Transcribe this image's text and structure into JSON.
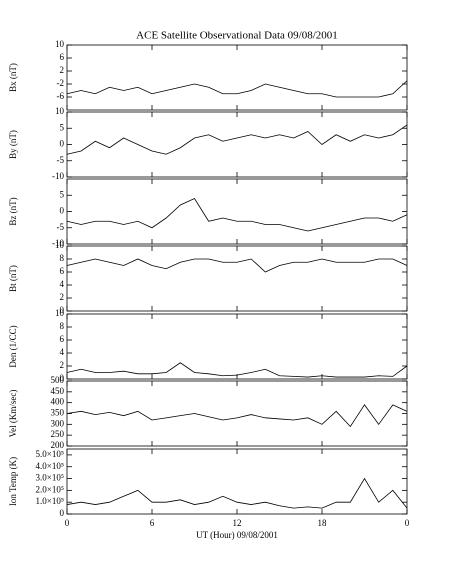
{
  "chart_data": [
    {
      "type": "line",
      "title": "ACE Satellite Observational Data  09/08/2001",
      "ylabel": "Bx (nT)",
      "xlim": [
        0,
        24
      ],
      "xticks": [
        {
          "value": 0,
          "label": "0"
        },
        6,
        12,
        18,
        {
          "value": 24,
          "label": "0"
        }
      ],
      "ylim": [
        -10,
        10
      ],
      "yticks": [
        -6,
        -2,
        2,
        6,
        10
      ],
      "x": [
        0,
        1,
        2,
        3,
        4,
        5,
        6,
        7,
        8,
        9,
        10,
        11,
        12,
        13,
        14,
        15,
        16,
        17,
        18,
        19,
        20,
        21,
        22,
        23,
        24
      ],
      "series": [
        {
          "color": "#000000",
          "values": [
            -5,
            -4,
            -5,
            -3,
            -4,
            -3,
            -5,
            -4,
            -3,
            -2,
            -3,
            -5,
            -5,
            -4,
            -2,
            -3,
            -4,
            -5,
            -5,
            -6,
            -6,
            -6,
            -6,
            -5,
            -1
          ]
        }
      ]
    },
    {
      "type": "line",
      "ylabel": "By (nT)",
      "xlim": [
        0,
        24
      ],
      "xticks": [
        {
          "value": 0,
          "label": "0"
        },
        6,
        12,
        18,
        {
          "value": 24,
          "label": "0"
        }
      ],
      "ylim": [
        -10,
        10
      ],
      "yticks": [
        -10,
        -5,
        0,
        5,
        10
      ],
      "x": [
        0,
        1,
        2,
        3,
        4,
        5,
        6,
        7,
        8,
        9,
        10,
        11,
        12,
        13,
        14,
        15,
        16,
        17,
        18,
        19,
        20,
        21,
        22,
        23,
        24
      ],
      "series": [
        {
          "color": "#000000",
          "values": [
            -3,
            -2,
            1,
            -1,
            2,
            0,
            -2,
            -3,
            -1,
            2,
            3,
            1,
            2,
            3,
            2,
            3,
            2,
            4,
            0,
            3,
            1,
            3,
            2,
            3,
            6
          ]
        }
      ]
    },
    {
      "type": "line",
      "ylabel": "Bz (nT)",
      "xlim": [
        0,
        24
      ],
      "xticks": [
        {
          "value": 0,
          "label": "0"
        },
        6,
        12,
        18,
        {
          "value": 24,
          "label": "0"
        }
      ],
      "ylim": [
        -10,
        10
      ],
      "yticks": [
        -10,
        -5,
        0,
        5
      ],
      "x": [
        0,
        1,
        2,
        3,
        4,
        5,
        6,
        7,
        8,
        9,
        10,
        11,
        12,
        13,
        14,
        15,
        16,
        17,
        18,
        19,
        20,
        21,
        22,
        23,
        24
      ],
      "series": [
        {
          "color": "#000000",
          "values": [
            -3,
            -4,
            -3,
            -3,
            -4,
            -3,
            -5,
            -2,
            2,
            4,
            -3,
            -2,
            -3,
            -3,
            -4,
            -4,
            -5,
            -6,
            -5,
            -4,
            -3,
            -2,
            -2,
            -3,
            -1
          ]
        }
      ]
    },
    {
      "type": "line",
      "ylabel": "Bt (nT)",
      "xlim": [
        0,
        24
      ],
      "xticks": [
        {
          "value": 0,
          "label": "0"
        },
        6,
        12,
        18,
        {
          "value": 24,
          "label": "0"
        }
      ],
      "ylim": [
        0,
        10
      ],
      "yticks": [
        0,
        2,
        4,
        6,
        8,
        10
      ],
      "x": [
        0,
        1,
        2,
        3,
        4,
        5,
        6,
        7,
        8,
        9,
        10,
        11,
        12,
        13,
        14,
        15,
        16,
        17,
        18,
        19,
        20,
        21,
        22,
        23,
        24
      ],
      "series": [
        {
          "color": "#000000",
          "values": [
            7,
            7.5,
            8,
            7.5,
            7,
            8,
            7,
            6.5,
            7.5,
            8,
            8,
            7.5,
            7.5,
            8,
            6,
            7,
            7.5,
            7.5,
            8,
            7.5,
            7.5,
            7.5,
            8,
            8,
            7
          ]
        }
      ]
    },
    {
      "type": "line",
      "ylabel": "Den (1/CC)",
      "xlim": [
        0,
        24
      ],
      "xticks": [
        {
          "value": 0,
          "label": "0"
        },
        6,
        12,
        18,
        {
          "value": 24,
          "label": "0"
        }
      ],
      "ylim": [
        0,
        10
      ],
      "yticks": [
        0,
        2,
        4,
        6,
        8,
        10
      ],
      "x": [
        0,
        1,
        2,
        3,
        4,
        5,
        6,
        7,
        8,
        9,
        10,
        11,
        12,
        13,
        14,
        15,
        16,
        17,
        18,
        19,
        20,
        21,
        22,
        23,
        24
      ],
      "series": [
        {
          "color": "#000000",
          "values": [
            1,
            1.5,
            1,
            1,
            1.2,
            0.8,
            0.8,
            1,
            2.5,
            1,
            0.8,
            0.5,
            0.6,
            1,
            1.5,
            0.5,
            0.4,
            0.3,
            0.5,
            0.3,
            0.3,
            0.3,
            0.5,
            0.4,
            2
          ]
        }
      ]
    },
    {
      "type": "line",
      "ylabel": "Vel (Km/sec)",
      "xlim": [
        0,
        24
      ],
      "xticks": [
        {
          "value": 0,
          "label": "0"
        },
        6,
        12,
        18,
        {
          "value": 24,
          "label": "0"
        }
      ],
      "ylim": [
        200,
        500
      ],
      "yticks": [
        200,
        250,
        300,
        350,
        400,
        450,
        500
      ],
      "x": [
        0,
        1,
        2,
        3,
        4,
        5,
        6,
        7,
        8,
        9,
        10,
        11,
        12,
        13,
        14,
        15,
        16,
        17,
        18,
        19,
        20,
        21,
        22,
        23,
        24
      ],
      "series": [
        {
          "color": "#000000",
          "values": [
            350,
            360,
            345,
            355,
            340,
            360,
            320,
            330,
            340,
            350,
            335,
            320,
            330,
            345,
            330,
            325,
            320,
            330,
            300,
            360,
            290,
            390,
            300,
            390,
            360
          ]
        }
      ]
    },
    {
      "type": "line",
      "ylabel": "Ion Temp (K)",
      "xlabel": "UT (Hour)  09/08/2001",
      "xlim": [
        0,
        24
      ],
      "xticks": [
        {
          "value": 0,
          "label": "0"
        },
        6,
        12,
        18,
        {
          "value": 24,
          "label": "0"
        }
      ],
      "ylim": [
        0,
        550000
      ],
      "yticks": [
        0,
        {
          "value": 100000,
          "label": "1.0×10⁵"
        },
        {
          "value": 200000,
          "label": "2.0×10⁵"
        },
        {
          "value": 300000,
          "label": "3.0×10⁵"
        },
        {
          "value": 400000,
          "label": "4.0×10⁵"
        },
        {
          "value": 500000,
          "label": "5.0×10⁵"
        }
      ],
      "x": [
        0,
        1,
        2,
        3,
        4,
        5,
        6,
        7,
        8,
        9,
        10,
        11,
        12,
        13,
        14,
        15,
        16,
        17,
        18,
        19,
        20,
        21,
        22,
        23,
        24
      ],
      "series": [
        {
          "color": "#000000",
          "values": [
            80000,
            100000,
            80000,
            100000,
            150000,
            200000,
            100000,
            100000,
            120000,
            80000,
            100000,
            150000,
            100000,
            80000,
            100000,
            70000,
            50000,
            60000,
            50000,
            100000,
            100000,
            300000,
            100000,
            200000,
            50000
          ]
        }
      ]
    }
  ]
}
